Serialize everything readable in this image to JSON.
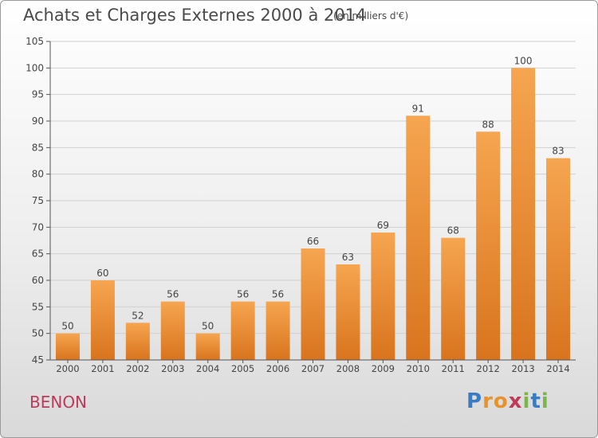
{
  "header": {
    "title": "Achats et Charges Externes 2000 à 2014",
    "unit": "(en milliers d'€)"
  },
  "footer": {
    "commune": "BENON",
    "logo_letters": [
      {
        "ch": "P",
        "color": "#3a7cc4"
      },
      {
        "ch": "r",
        "color": "#e7922b"
      },
      {
        "ch": "o",
        "color": "#e7922b"
      },
      {
        "ch": "x",
        "color": "#c0395a"
      },
      {
        "ch": "i",
        "color": "#7ab648"
      },
      {
        "ch": "t",
        "color": "#3a7cc4"
      },
      {
        "ch": "i",
        "color": "#7ab648"
      }
    ]
  },
  "chart_data": {
    "type": "bar",
    "title": "Achats et Charges Externes 2000 à 2014",
    "subtitle": "(en milliers d'€)",
    "categories": [
      "2000",
      "2001",
      "2002",
      "2003",
      "2004",
      "2005",
      "2006",
      "2007",
      "2008",
      "2009",
      "2010",
      "2011",
      "2012",
      "2013",
      "2014"
    ],
    "values": [
      50,
      60,
      52,
      56,
      50,
      56,
      56,
      66,
      63,
      69,
      91,
      68,
      88,
      100,
      83
    ],
    "ylim": [
      45,
      105
    ],
    "yticks": [
      45,
      50,
      55,
      60,
      65,
      70,
      75,
      80,
      85,
      90,
      95,
      100,
      105
    ],
    "grid": true,
    "bar_color_top": "#f6a550",
    "bar_color_bottom": "#d9741e"
  }
}
